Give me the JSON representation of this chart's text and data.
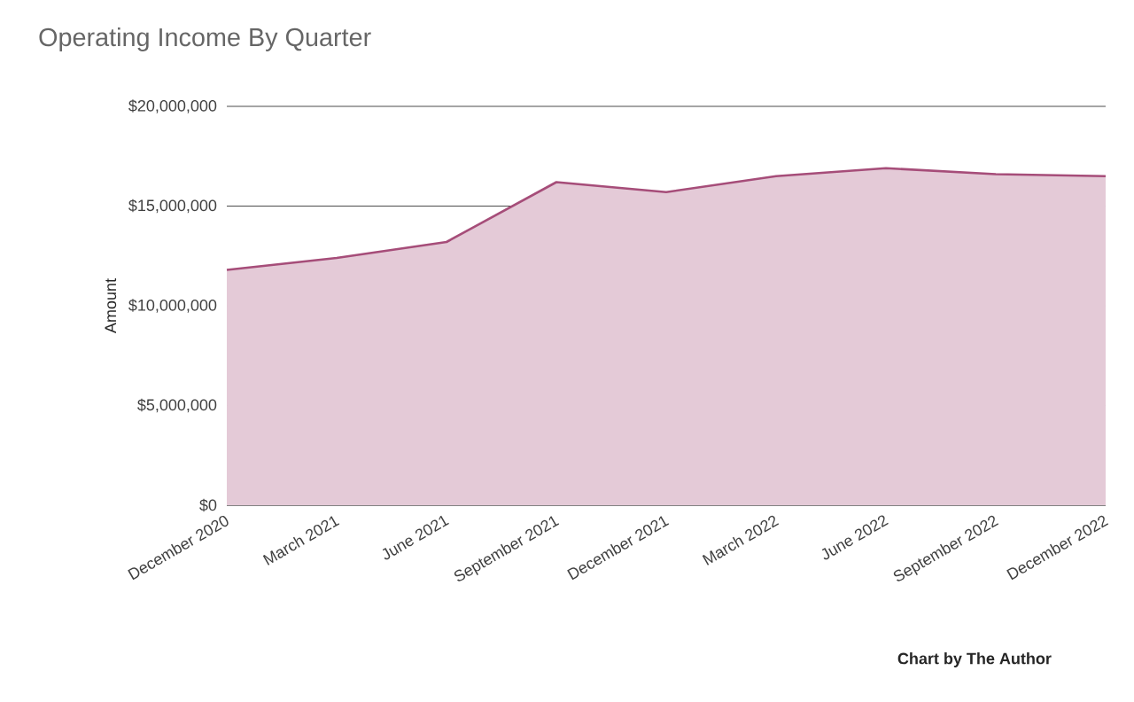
{
  "chart_data": {
    "type": "area",
    "title": "Operating Income By Quarter",
    "ylabel": "Amount",
    "categories": [
      "December 2020",
      "March 2021",
      "June 2021",
      "September 2021",
      "December 2021",
      "March 2022",
      "June 2022",
      "September 2022",
      "December 2022"
    ],
    "series": [
      {
        "color": "#a64d79",
        "values": [
          11800000,
          12400000,
          13200000,
          16200000,
          15700000,
          16500000,
          16900000,
          16600000,
          16500000
        ]
      }
    ],
    "ylim": [
      0,
      20000000
    ],
    "yticks": [
      {
        "value": 0,
        "label": "$0"
      },
      {
        "value": 5000000,
        "label": "$5,000,000"
      },
      {
        "value": 10000000,
        "label": "$10,000,000"
      },
      {
        "value": 15000000,
        "label": "$15,000,000"
      },
      {
        "value": 20000000,
        "label": "$20,000,000"
      }
    ],
    "grid": "y",
    "annotations": [
      "**Chart by The Author**"
    ]
  }
}
